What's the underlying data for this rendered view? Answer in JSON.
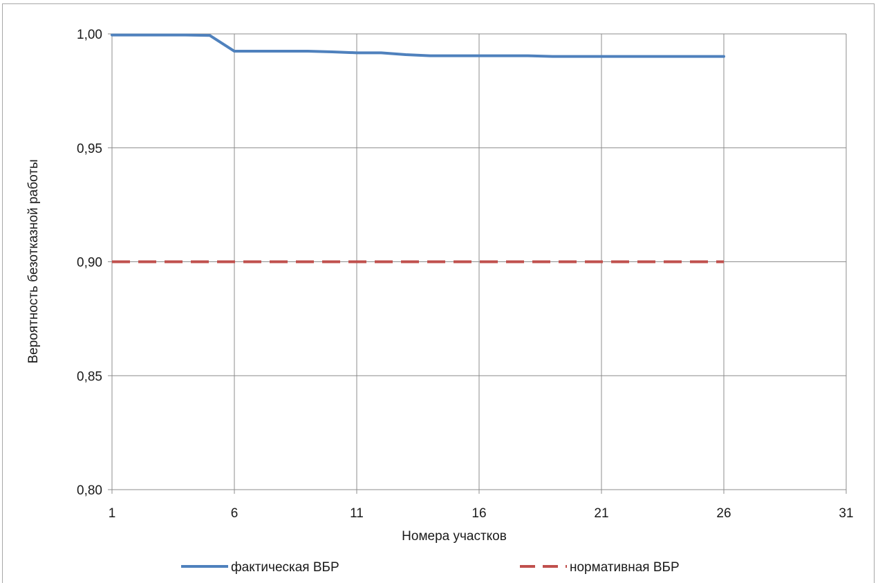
{
  "chart_data": {
    "type": "line",
    "xlabel": "Номера участков",
    "ylabel": "Вероятность безотказной работы",
    "xlim": [
      1,
      31
    ],
    "ylim": [
      0.8,
      1.0
    ],
    "x_ticks": [
      1,
      6,
      11,
      16,
      21,
      26,
      31
    ],
    "y_ticks": [
      0.8,
      0.85,
      0.9,
      0.95,
      1.0
    ],
    "x_tick_labels": [
      "1",
      "6",
      "11",
      "16",
      "21",
      "26",
      "31"
    ],
    "y_tick_labels": [
      "0,80",
      "0,85",
      "0,90",
      "0,95",
      "1,00"
    ],
    "grid": true,
    "legend_position": "bottom",
    "series": [
      {
        "name": "фактическая ВБР",
        "color": "#4f81bd",
        "style": "solid",
        "x": [
          1,
          2,
          3,
          4,
          5,
          6,
          7,
          8,
          9,
          10,
          11,
          12,
          13,
          14,
          15,
          16,
          17,
          18,
          19,
          20,
          21,
          22,
          23,
          24,
          25,
          26
        ],
        "values": [
          0.9995,
          0.9995,
          0.9995,
          0.9995,
          0.9993,
          0.9924,
          0.9924,
          0.9924,
          0.9924,
          0.9921,
          0.9917,
          0.9917,
          0.9909,
          0.9904,
          0.9904,
          0.9904,
          0.9904,
          0.9904,
          0.9901,
          0.9901,
          0.9901,
          0.9901,
          0.9901,
          0.9901,
          0.9901,
          0.9901
        ]
      },
      {
        "name": "нормативная ВБР",
        "color": "#c0504d",
        "style": "dashed",
        "x": [
          1,
          26
        ],
        "values": [
          0.9,
          0.9
        ]
      }
    ]
  }
}
